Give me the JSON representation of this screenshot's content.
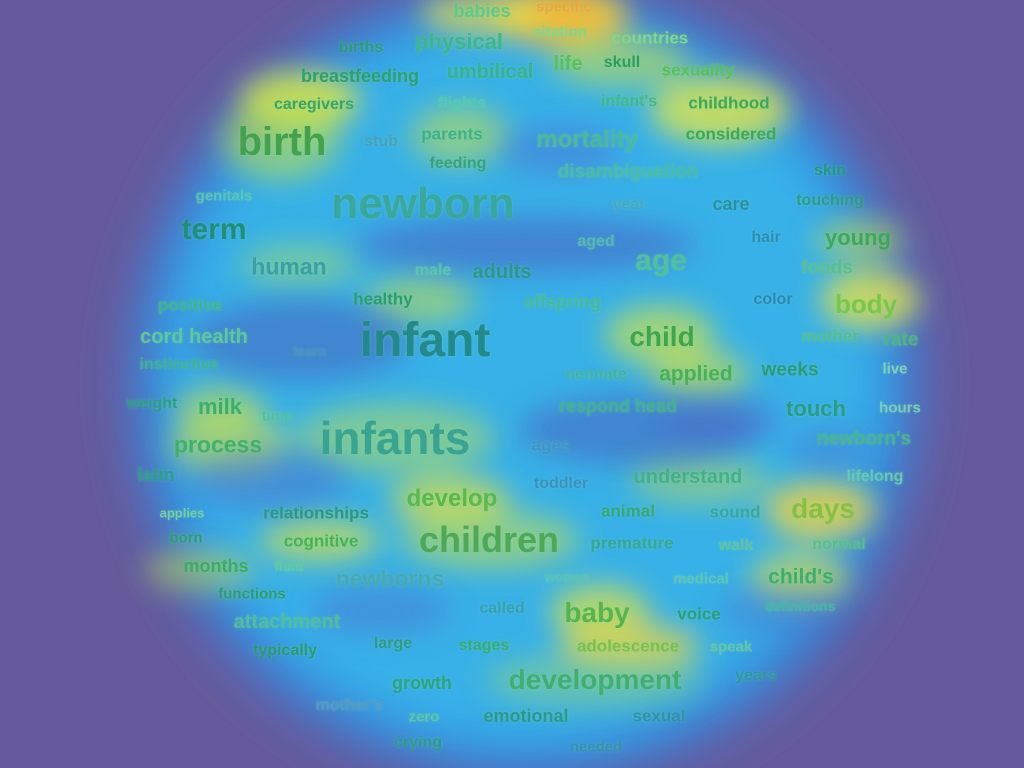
{
  "words": [
    {
      "t": "babies",
      "c": "#5fc98a"
    },
    {
      "t": "specific",
      "c": "#f2a53a"
    },
    {
      "t": "citation",
      "c": "#7ed78c"
    },
    {
      "t": "countries",
      "c": "#7ed78c"
    },
    {
      "t": "births",
      "c": "#2e9c7a"
    },
    {
      "t": "physical",
      "c": "#3fb58a"
    },
    {
      "t": "breastfeeding",
      "c": "#2f9f6e"
    },
    {
      "t": "umbilical",
      "c": "#3ab28a"
    },
    {
      "t": "life",
      "c": "#5cc05a"
    },
    {
      "t": "skull",
      "c": "#2f9c62"
    },
    {
      "t": "sexuality",
      "c": "#5cc05a"
    },
    {
      "t": "caregivers",
      "c": "#3aa56a"
    },
    {
      "t": "flights",
      "c": "#55c9b6"
    },
    {
      "t": "infant's",
      "c": "#45b889"
    },
    {
      "t": "childhood",
      "c": "#3ea858"
    },
    {
      "t": "birth",
      "c": "#44a24e"
    },
    {
      "t": "stub",
      "c": "#4aa0c0"
    },
    {
      "t": "parents",
      "c": "#3fb08d"
    },
    {
      "t": "mortality",
      "c": "#4db89a"
    },
    {
      "t": "considered",
      "c": "#3ea858"
    },
    {
      "t": "feeding",
      "c": "#3aa27a"
    },
    {
      "t": "disambiguation",
      "c": "#4dbba2"
    },
    {
      "t": "skin",
      "c": "#239a80"
    },
    {
      "t": "genitals",
      "c": "#59c4b8"
    },
    {
      "t": "newborn",
      "c": "#3aa79b"
    },
    {
      "t": "year",
      "c": "#4aa6c2"
    },
    {
      "t": "care",
      "c": "#2a90a6"
    },
    {
      "t": "touching",
      "c": "#2e9c82"
    },
    {
      "t": "term",
      "c": "#1f8f78"
    },
    {
      "t": "aged",
      "c": "#56b8b0"
    },
    {
      "t": "hair",
      "c": "#2e8db8"
    },
    {
      "t": "young",
      "c": "#3ea858"
    },
    {
      "t": "human",
      "c": "#3a9fa8"
    },
    {
      "t": "male",
      "c": "#5ac3b2"
    },
    {
      "t": "adults",
      "c": "#2a988c"
    },
    {
      "t": "age",
      "c": "#52c09a"
    },
    {
      "t": "foods",
      "c": "#5ebe8c"
    },
    {
      "t": "positive",
      "c": "#3fb68a"
    },
    {
      "t": "healthy",
      "c": "#2a9e70"
    },
    {
      "t": "offspring",
      "c": "#49b89a"
    },
    {
      "t": "color",
      "c": "#2d88b4"
    },
    {
      "t": "body",
      "c": "#7cc64a"
    },
    {
      "t": "cord health",
      "c": "#5fc79c"
    },
    {
      "t": "learn",
      "c": "#4d8fc6"
    },
    {
      "t": "infant",
      "c": "#23898a"
    },
    {
      "t": "child",
      "c": "#3ea650"
    },
    {
      "t": "mother",
      "c": "#56bd8f"
    },
    {
      "t": "rate",
      "c": "#4bb67e"
    },
    {
      "t": "instinctive",
      "c": "#3fb295"
    },
    {
      "t": "neonate",
      "c": "#49b29e"
    },
    {
      "t": "applied",
      "c": "#4ab056"
    },
    {
      "t": "weeks",
      "c": "#2c9a78"
    },
    {
      "t": "live",
      "c": "#7fd1b8"
    },
    {
      "t": "weight",
      "c": "#2c9e86"
    },
    {
      "t": "milk",
      "c": "#3bae6c"
    },
    {
      "t": "time",
      "c": "#52bfa6"
    },
    {
      "t": "respond head",
      "c": "#44b08e"
    },
    {
      "t": "touch",
      "c": "#2b9a86"
    },
    {
      "t": "hours",
      "c": "#78ceb8"
    },
    {
      "t": "process",
      "c": "#41b06a"
    },
    {
      "t": "infants",
      "c": "#3aa493"
    },
    {
      "t": "ages",
      "c": "#3f96c6"
    },
    {
      "t": "newborn's",
      "c": "#4ab48e"
    },
    {
      "t": "latin",
      "c": "#2c9e8a"
    },
    {
      "t": "toddler",
      "c": "#3b92c2"
    },
    {
      "t": "understand",
      "c": "#44b08a"
    },
    {
      "t": "lifelong",
      "c": "#64c9b6"
    },
    {
      "t": "develop",
      "c": "#5cb84e"
    },
    {
      "t": "applies",
      "c": "#74cfa6"
    },
    {
      "t": "relationships",
      "c": "#2e9586"
    },
    {
      "t": "animal",
      "c": "#38a676"
    },
    {
      "t": "sound",
      "c": "#3aa6a0"
    },
    {
      "t": "days",
      "c": "#8abf44"
    },
    {
      "t": "born",
      "c": "#2f9c78"
    },
    {
      "t": "cognitive",
      "c": "#47b058"
    },
    {
      "t": "children",
      "c": "#4ea858"
    },
    {
      "t": "premature",
      "c": "#3aa694"
    },
    {
      "t": "walk",
      "c": "#62c3a4"
    },
    {
      "t": "normal",
      "c": "#55c08c"
    },
    {
      "t": "months",
      "c": "#3faa62"
    },
    {
      "t": "fluid",
      "c": "#60c99e"
    },
    {
      "t": "newborns",
      "c": "#4aa8b4"
    },
    {
      "t": "women",
      "c": "#5bc4b2"
    },
    {
      "t": "medical",
      "c": "#5ec4b6"
    },
    {
      "t": "child's",
      "c": "#3fae6a"
    },
    {
      "t": "functions",
      "c": "#2e9c70"
    },
    {
      "t": "called",
      "c": "#3a9fb4"
    },
    {
      "t": "baby",
      "c": "#58b44e"
    },
    {
      "t": "voice",
      "c": "#2c9e7a"
    },
    {
      "t": "definitions",
      "c": "#46b6a4"
    },
    {
      "t": "attachment",
      "c": "#52bd9c"
    },
    {
      "t": "typically",
      "c": "#2c9a70"
    },
    {
      "t": "large",
      "c": "#2e9a88"
    },
    {
      "t": "stages",
      "c": "#3aaa76"
    },
    {
      "t": "adolescence",
      "c": "#7cbf4a"
    },
    {
      "t": "speak",
      "c": "#64c6a6"
    },
    {
      "t": "growth",
      "c": "#2fa280"
    },
    {
      "t": "development",
      "c": "#42ae72"
    },
    {
      "t": "years",
      "c": "#2f98a0"
    },
    {
      "t": "mother's",
      "c": "#5698c8"
    },
    {
      "t": "zero",
      "c": "#5cc7a4"
    },
    {
      "t": "emotional",
      "c": "#2b9a8a"
    },
    {
      "t": "sexual",
      "c": "#3092a8"
    },
    {
      "t": "crying",
      "c": "#2e9c8a"
    },
    {
      "t": "needed",
      "c": "#3592b0"
    }
  ]
}
